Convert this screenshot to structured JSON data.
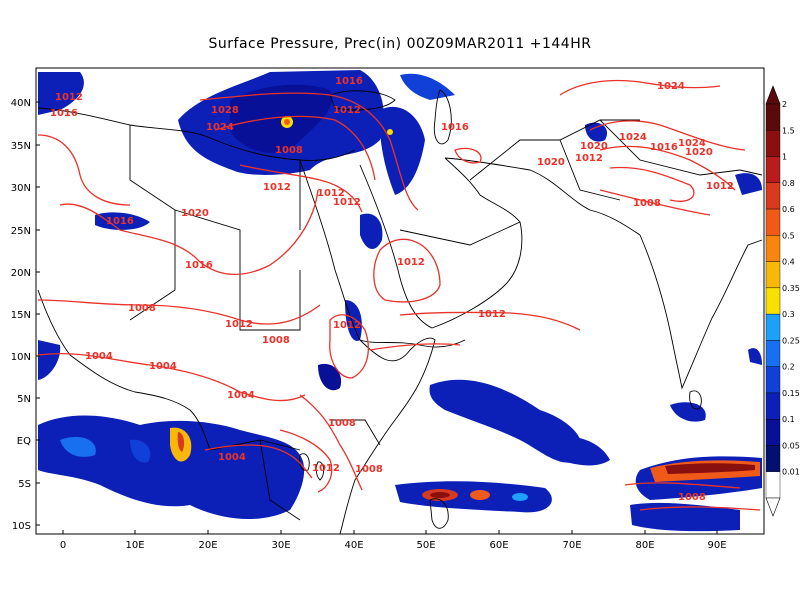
{
  "title": "Surface Pressure,  Prec(in) 00Z09MAR2011 +144HR",
  "lat_labels": [
    "40N",
    "35N",
    "30N",
    "25N",
    "20N",
    "15N",
    "10N",
    "5N",
    "EQ",
    "5S",
    "10S"
  ],
  "lon_labels": [
    "0",
    "10E",
    "20E",
    "30E",
    "40E",
    "50E",
    "60E",
    "70E",
    "80E",
    "90E"
  ],
  "isobar_labels": [
    {
      "text": "1016"
    },
    {
      "text": "1012"
    },
    {
      "text": "1016"
    },
    {
      "text": "1028"
    },
    {
      "text": "1024"
    },
    {
      "text": "1008"
    },
    {
      "text": "1012"
    },
    {
      "text": "1016"
    },
    {
      "text": "1012"
    },
    {
      "text": "1012"
    },
    {
      "text": "1012"
    },
    {
      "text": "1016"
    },
    {
      "text": "1020"
    },
    {
      "text": "1016"
    },
    {
      "text": "1008"
    },
    {
      "text": "1012"
    },
    {
      "text": "1008"
    },
    {
      "text": "1012"
    },
    {
      "text": "1004"
    },
    {
      "text": "1004"
    },
    {
      "text": "1004"
    },
    {
      "text": "1008"
    },
    {
      "text": "1004"
    },
    {
      "text": "1012"
    },
    {
      "text": "1008"
    },
    {
      "text": "1012"
    },
    {
      "text": "1024"
    },
    {
      "text": "1024"
    },
    {
      "text": "1020"
    },
    {
      "text": "1016"
    },
    {
      "text": "1024"
    },
    {
      "text": "1020"
    },
    {
      "text": "1012"
    },
    {
      "text": "1020"
    },
    {
      "text": "1012"
    },
    {
      "text": "1008"
    },
    {
      "text": "1012"
    },
    {
      "text": "1008"
    }
  ],
  "colorbar": {
    "levels": [
      "2",
      "1.5",
      "1",
      "0.8",
      "0.6",
      "0.5",
      "0.4",
      "0.35",
      "0.3",
      "0.25",
      "0.2",
      "0.15",
      "0.1",
      "0.05",
      "0.01"
    ],
    "colors": [
      "#5a0a0a",
      "#8a0f0f",
      "#b81c1c",
      "#d83a1e",
      "#f05a18",
      "#f8860e",
      "#f8b808",
      "#f8e000",
      "#1ea0f8",
      "#1870f0",
      "#1040d8",
      "#0c20b8",
      "#081098",
      "#041070",
      "#ffffff"
    ]
  }
}
